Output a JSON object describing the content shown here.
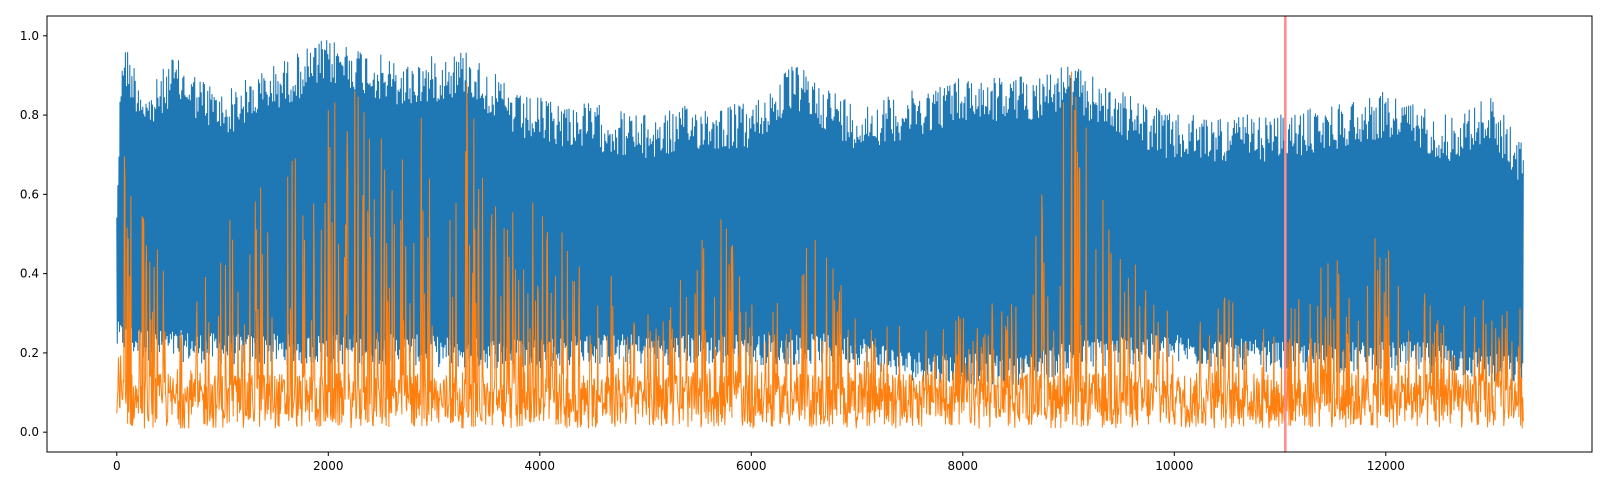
{
  "chart_data": {
    "type": "line",
    "title": "",
    "xlabel": "",
    "ylabel": "",
    "xlim": [
      -660,
      13950
    ],
    "ylim": [
      -0.05,
      1.05
    ],
    "grid": false,
    "legend": "none",
    "x_ticks": [
      {
        "value": 0,
        "label": "0"
      },
      {
        "value": 2000,
        "label": "2000"
      },
      {
        "value": 4000,
        "label": "4000"
      },
      {
        "value": 6000,
        "label": "6000"
      },
      {
        "value": 8000,
        "label": "8000"
      },
      {
        "value": 10000,
        "label": "10000"
      },
      {
        "value": 12000,
        "label": "12000"
      }
    ],
    "y_ticks": [
      {
        "value": 0.0,
        "label": "0.0"
      },
      {
        "value": 0.2,
        "label": "0.2"
      },
      {
        "value": 0.4,
        "label": "0.4"
      },
      {
        "value": 0.6,
        "label": "0.6"
      },
      {
        "value": 0.8,
        "label": "0.8"
      },
      {
        "value": 1.0,
        "label": "1.0"
      }
    ],
    "x_range": [
      0,
      13300
    ],
    "series": [
      {
        "name": "series_1",
        "color": "#1f77b4",
        "description": "oscillating signal, troughs near 0.15-0.3",
        "envelope": [
          {
            "x": 0,
            "high": 0.62,
            "low": 0.2
          },
          {
            "x": 50,
            "high": 1.0,
            "low": 0.2
          },
          {
            "x": 300,
            "high": 0.86,
            "low": 0.18
          },
          {
            "x": 520,
            "high": 0.95,
            "low": 0.18
          },
          {
            "x": 1000,
            "high": 0.86,
            "low": 0.17
          },
          {
            "x": 1500,
            "high": 0.93,
            "low": 0.17
          },
          {
            "x": 1950,
            "high": 0.99,
            "low": 0.17
          },
          {
            "x": 2150,
            "high": 0.99,
            "low": 0.17
          },
          {
            "x": 2700,
            "high": 0.93,
            "low": 0.17
          },
          {
            "x": 3300,
            "high": 0.97,
            "low": 0.16
          },
          {
            "x": 3800,
            "high": 0.85,
            "low": 0.16
          },
          {
            "x": 4500,
            "high": 0.83,
            "low": 0.17
          },
          {
            "x": 5000,
            "high": 0.8,
            "low": 0.17
          },
          {
            "x": 5500,
            "high": 0.83,
            "low": 0.17
          },
          {
            "x": 6000,
            "high": 0.83,
            "low": 0.17
          },
          {
            "x": 6400,
            "high": 0.93,
            "low": 0.17
          },
          {
            "x": 7000,
            "high": 0.83,
            "low": 0.17
          },
          {
            "x": 7500,
            "high": 0.86,
            "low": 0.13
          },
          {
            "x": 8000,
            "high": 0.9,
            "low": 0.12
          },
          {
            "x": 8600,
            "high": 0.9,
            "low": 0.12
          },
          {
            "x": 9000,
            "high": 0.93,
            "low": 0.15
          },
          {
            "x": 9500,
            "high": 0.86,
            "low": 0.17
          },
          {
            "x": 10000,
            "high": 0.8,
            "low": 0.17
          },
          {
            "x": 11000,
            "high": 0.8,
            "low": 0.15
          },
          {
            "x": 11500,
            "high": 0.83,
            "low": 0.15
          },
          {
            "x": 12000,
            "high": 0.86,
            "low": 0.15
          },
          {
            "x": 12600,
            "high": 0.8,
            "low": 0.15
          },
          {
            "x": 13000,
            "high": 0.85,
            "low": 0.12
          },
          {
            "x": 13300,
            "high": 0.73,
            "low": 0.12
          }
        ]
      },
      {
        "name": "series_2",
        "color": "#ff7f0e",
        "description": "noisy signal with baseline near 0.05 and bursts",
        "envelope": [
          {
            "x": 0,
            "high": 0.2,
            "low": 0.0
          },
          {
            "x": 60,
            "high": 0.9,
            "low": 0.0
          },
          {
            "x": 150,
            "high": 0.65,
            "low": 0.0
          },
          {
            "x": 400,
            "high": 0.45,
            "low": 0.0
          },
          {
            "x": 800,
            "high": 0.4,
            "low": 0.0
          },
          {
            "x": 1200,
            "high": 0.65,
            "low": 0.0
          },
          {
            "x": 1700,
            "high": 0.75,
            "low": 0.0
          },
          {
            "x": 2200,
            "high": 0.88,
            "low": 0.0
          },
          {
            "x": 2700,
            "high": 0.7,
            "low": 0.0
          },
          {
            "x": 3000,
            "high": 0.9,
            "low": 0.0
          },
          {
            "x": 3300,
            "high": 0.9,
            "low": 0.0
          },
          {
            "x": 3600,
            "high": 0.58,
            "low": 0.0
          },
          {
            "x": 4000,
            "high": 0.6,
            "low": 0.0
          },
          {
            "x": 4500,
            "high": 0.45,
            "low": 0.0
          },
          {
            "x": 5000,
            "high": 0.3,
            "low": 0.0
          },
          {
            "x": 5700,
            "high": 0.56,
            "low": 0.0
          },
          {
            "x": 6200,
            "high": 0.3,
            "low": 0.0
          },
          {
            "x": 6600,
            "high": 0.55,
            "low": 0.0
          },
          {
            "x": 7000,
            "high": 0.3,
            "low": 0.0
          },
          {
            "x": 7500,
            "high": 0.26,
            "low": 0.0
          },
          {
            "x": 8000,
            "high": 0.3,
            "low": 0.0
          },
          {
            "x": 8500,
            "high": 0.35,
            "low": 0.0
          },
          {
            "x": 8800,
            "high": 0.68,
            "low": 0.0
          },
          {
            "x": 9000,
            "high": 0.99,
            "low": 0.0
          },
          {
            "x": 9300,
            "high": 0.62,
            "low": 0.0
          },
          {
            "x": 9600,
            "high": 0.45,
            "low": 0.0
          },
          {
            "x": 10000,
            "high": 0.28,
            "low": 0.0
          },
          {
            "x": 10500,
            "high": 0.35,
            "low": 0.0
          },
          {
            "x": 11000,
            "high": 0.28,
            "low": 0.0
          },
          {
            "x": 11400,
            "high": 0.43,
            "low": 0.0
          },
          {
            "x": 12000,
            "high": 0.5,
            "low": 0.0
          },
          {
            "x": 12500,
            "high": 0.3,
            "low": 0.0
          },
          {
            "x": 13000,
            "high": 0.35,
            "low": 0.0
          },
          {
            "x": 13300,
            "high": 0.32,
            "low": 0.0
          }
        ]
      }
    ],
    "vertical_markers": [
      {
        "x": 11050,
        "color": "#ff8a8a"
      }
    ]
  }
}
